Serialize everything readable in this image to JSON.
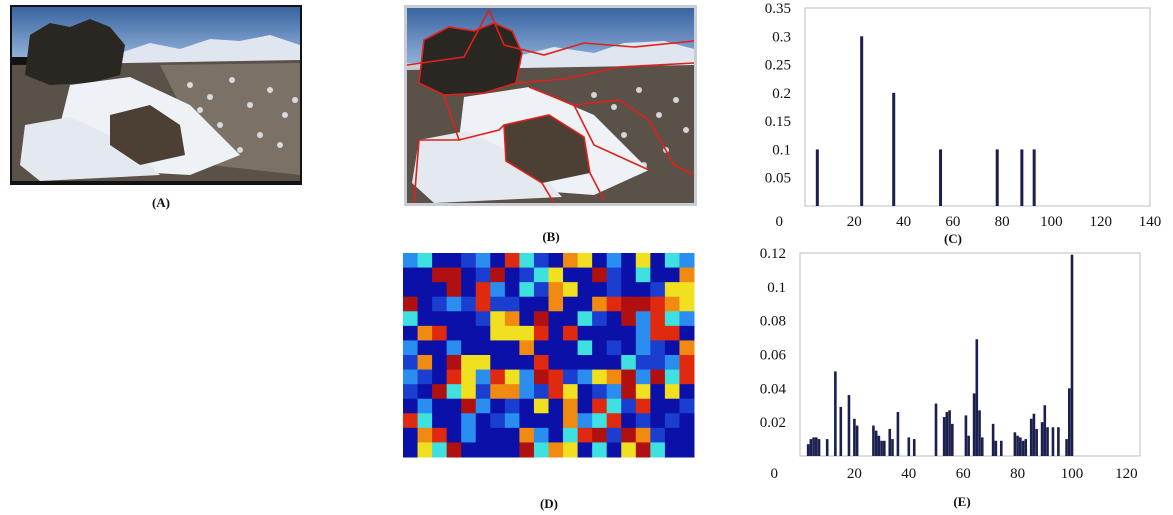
{
  "labels": {
    "a": "(A)",
    "b": "(B)",
    "c": "(C)",
    "d": "(D)",
    "e": "(E)"
  },
  "colors": {
    "bar": "#1a1f4d",
    "segment_outline": "#e0201a",
    "sky": "#3f6fa8",
    "snow": "#eef1f5",
    "rock": "#2a2622"
  },
  "chart_data": [
    {
      "id": "C",
      "type": "bar",
      "xlim": [
        0,
        140
      ],
      "ylim": [
        0,
        0.35
      ],
      "xticks": [
        20,
        40,
        60,
        80,
        100,
        120,
        140
      ],
      "yticks": [
        0.05,
        0.1,
        0.15,
        0.2,
        0.25,
        0.3,
        0.35
      ],
      "tick_labels": {
        "x": [
          "20",
          "40",
          "60",
          "80",
          "100",
          "120",
          "140"
        ],
        "y": [
          "0.05",
          "0.1",
          "0.15",
          "0.2",
          "0.25",
          "0.3",
          "0.35"
        ],
        "origin": "0"
      },
      "x": [
        5,
        23,
        36,
        55,
        78,
        88,
        93
      ],
      "values": [
        0.1,
        0.3,
        0.2,
        0.1,
        0.1,
        0.1,
        0.1
      ]
    },
    {
      "id": "E",
      "type": "bar",
      "xlim": [
        0,
        125
      ],
      "ylim": [
        0,
        0.12
      ],
      "xticks": [
        20,
        40,
        60,
        80,
        100,
        120
      ],
      "yticks": [
        0.02,
        0.04,
        0.06,
        0.08,
        0.1,
        0.12
      ],
      "tick_labels": {
        "x": [
          "20",
          "40",
          "60",
          "80",
          "100",
          "120"
        ],
        "y": [
          "0.02",
          "0.04",
          "0.06",
          "0.08",
          "0.1",
          "0.12"
        ],
        "origin": "0"
      },
      "x": [
        3,
        4,
        5,
        6,
        7,
        10,
        13,
        15,
        18,
        20,
        21,
        27,
        28,
        29,
        30,
        31,
        33,
        34,
        36,
        40,
        42,
        50,
        53,
        54,
        55,
        56,
        61,
        62,
        64,
        65,
        66,
        67,
        71,
        72,
        74,
        79,
        80,
        81,
        82,
        83,
        85,
        86,
        87,
        89,
        90,
        91,
        93,
        95,
        98,
        99,
        100
      ],
      "values": [
        0.007,
        0.01,
        0.011,
        0.011,
        0.01,
        0.01,
        0.05,
        0.029,
        0.036,
        0.022,
        0.018,
        0.018,
        0.015,
        0.012,
        0.009,
        0.009,
        0.016,
        0.01,
        0.026,
        0.011,
        0.01,
        0.031,
        0.023,
        0.026,
        0.027,
        0.019,
        0.024,
        0.012,
        0.037,
        0.069,
        0.027,
        0.011,
        0.019,
        0.009,
        0.009,
        0.014,
        0.012,
        0.011,
        0.009,
        0.01,
        0.022,
        0.025,
        0.016,
        0.02,
        0.03,
        0.017,
        0.017,
        0.017,
        0.01,
        0.04,
        0.119
      ]
    }
  ]
}
